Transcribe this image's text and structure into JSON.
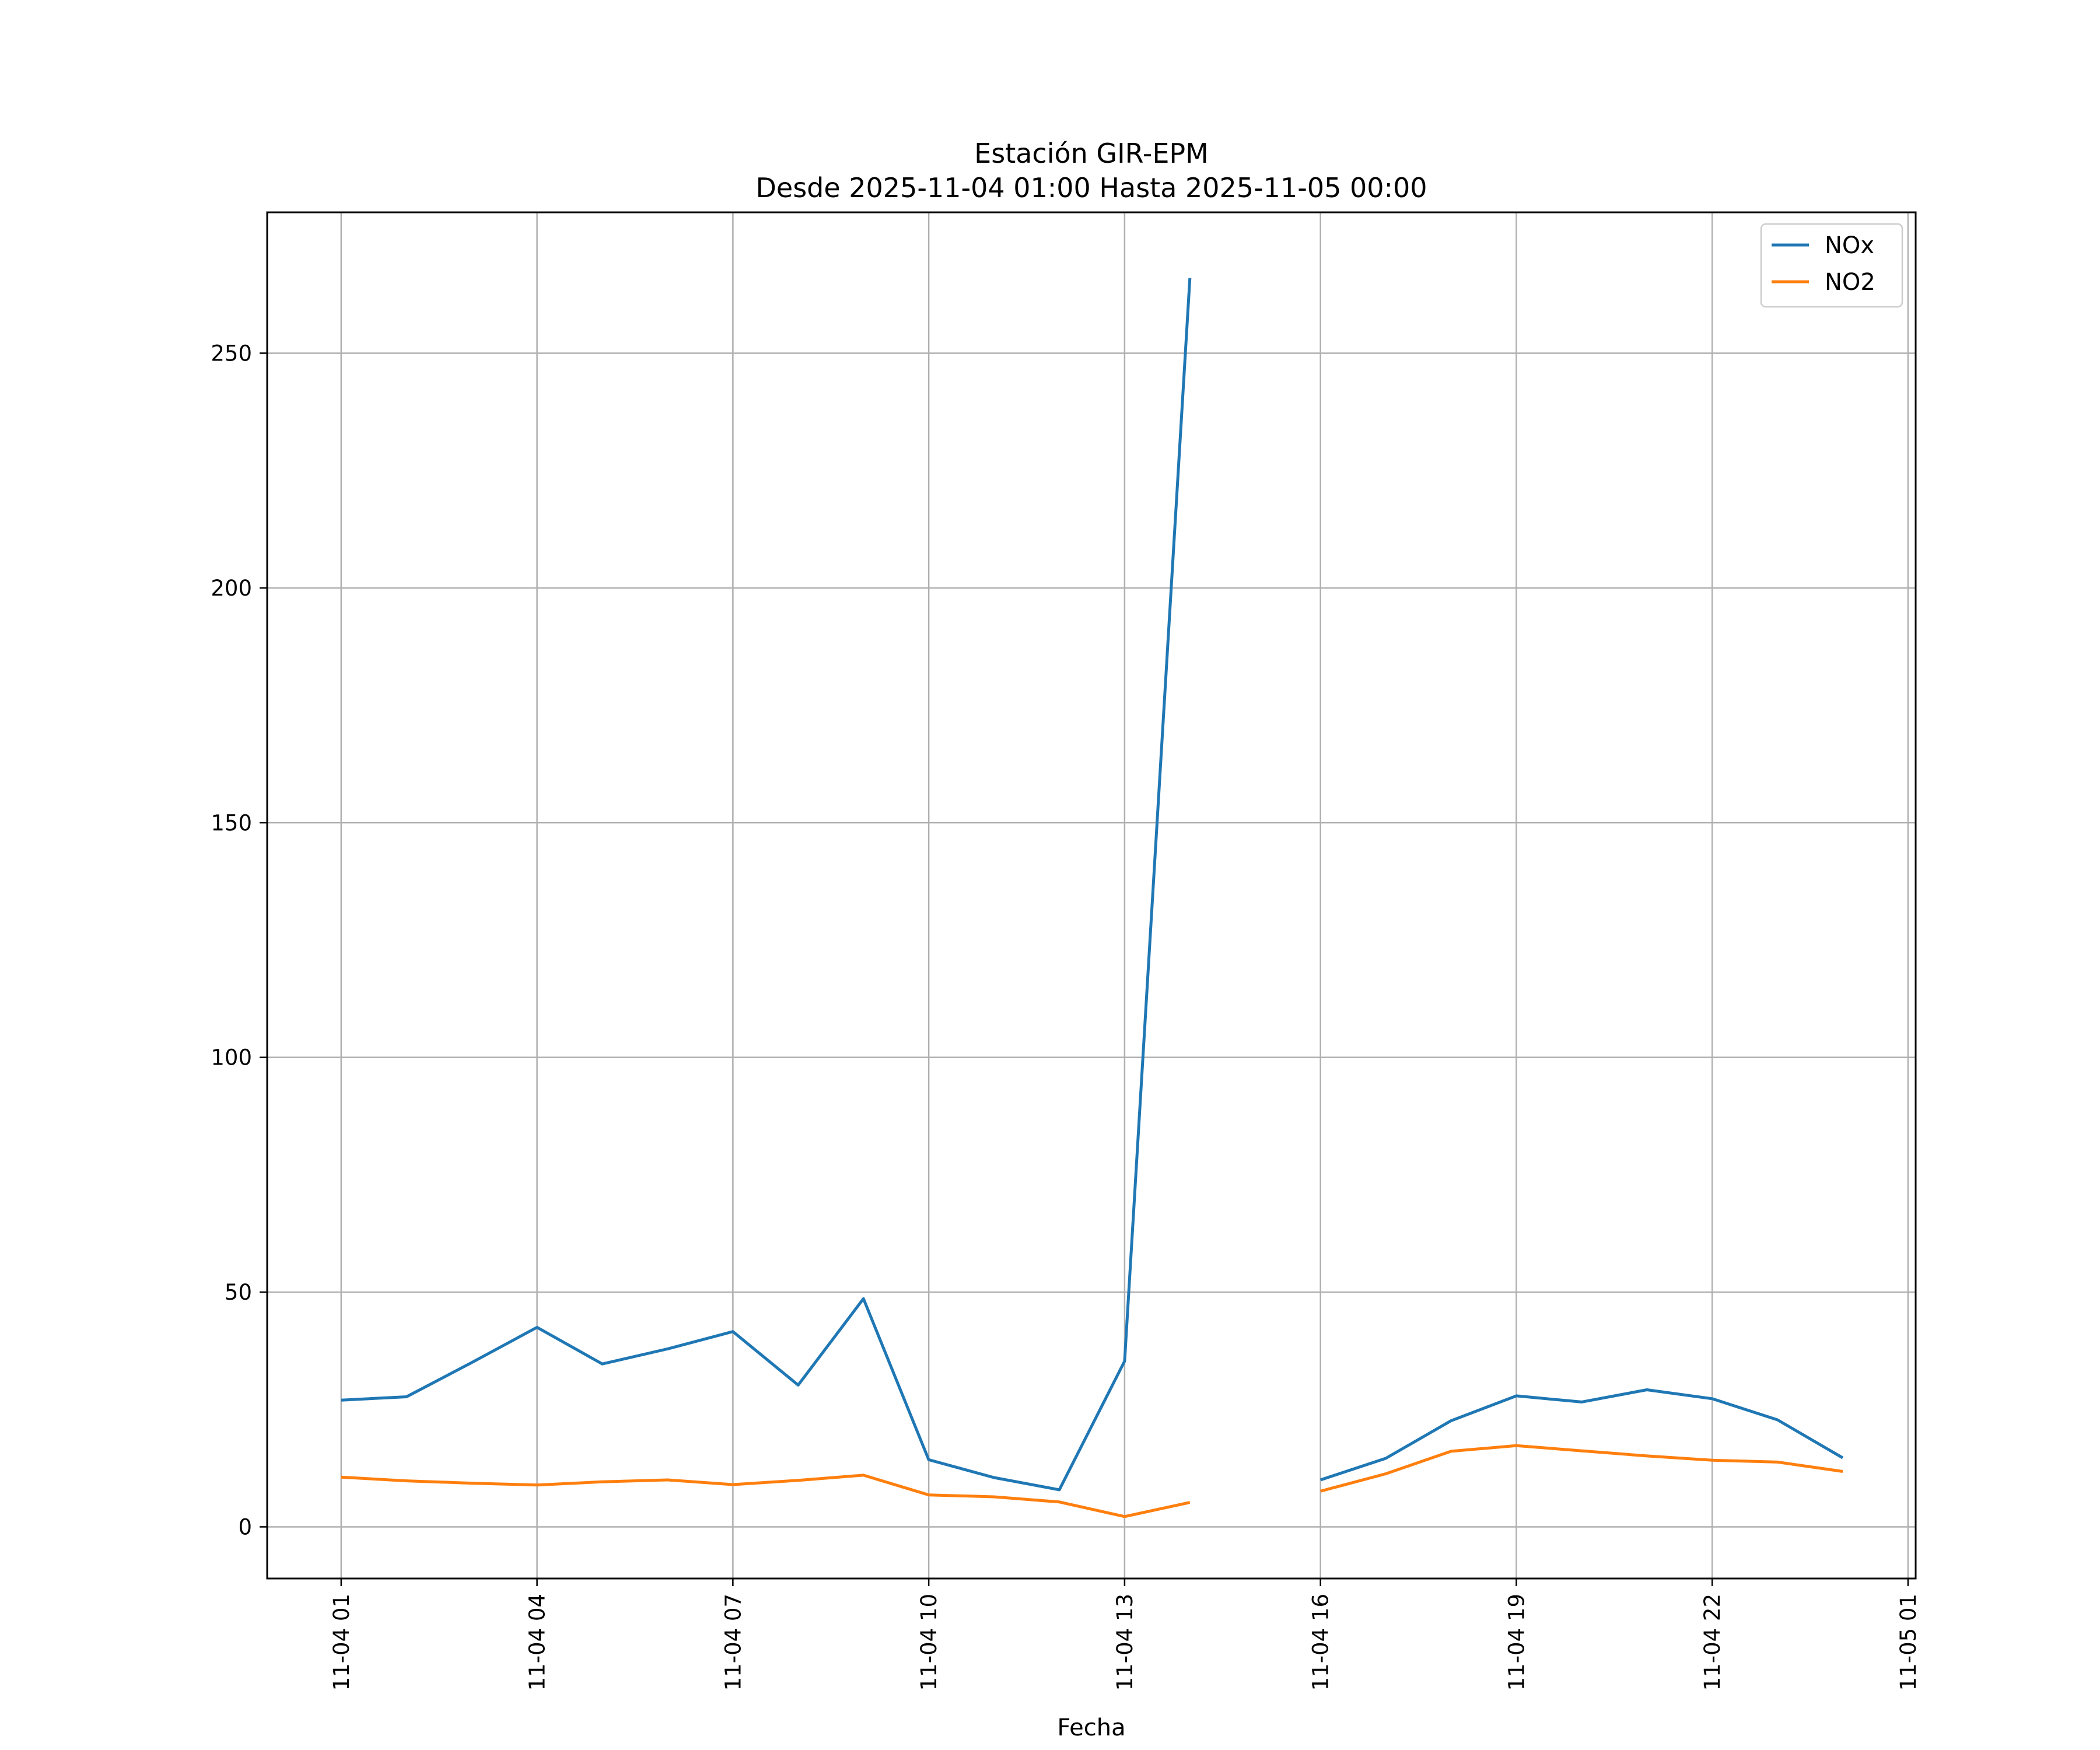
{
  "chart_data": {
    "type": "line",
    "title": "Estación GIR-EPM",
    "subtitle": "Desde 2025-11-04 01:00 Hasta 2025-11-05 00:00",
    "xlabel": "Fecha",
    "ylabel": "",
    "x": [
      "2025-11-04 01:00",
      "2025-11-04 02:00",
      "2025-11-04 03:00",
      "2025-11-04 04:00",
      "2025-11-04 05:00",
      "2025-11-04 06:00",
      "2025-11-04 07:00",
      "2025-11-04 08:00",
      "2025-11-04 09:00",
      "2025-11-04 10:00",
      "2025-11-04 11:00",
      "2025-11-04 12:00",
      "2025-11-04 13:00",
      "2025-11-04 14:00",
      "2025-11-04 15:00",
      "2025-11-04 16:00",
      "2025-11-04 17:00",
      "2025-11-04 18:00",
      "2025-11-04 19:00",
      "2025-11-04 20:00",
      "2025-11-04 21:00",
      "2025-11-04 22:00",
      "2025-11-04 23:00",
      "2025-11-05 00:00"
    ],
    "series": [
      {
        "name": "NOx",
        "color": "#1f77b4",
        "values": [
          27.0,
          27.7,
          35.0,
          42.5,
          34.7,
          37.9,
          41.6,
          30.2,
          48.6,
          14.3,
          10.5,
          7.9,
          35.3,
          266.0,
          null,
          10.0,
          14.6,
          22.6,
          27.9,
          26.6,
          29.2,
          27.3,
          22.8,
          14.7
        ]
      },
      {
        "name": "NO2",
        "color": "#ff7f0e",
        "values": [
          10.6,
          9.8,
          9.3,
          8.9,
          9.6,
          10.0,
          9.0,
          9.9,
          11.0,
          6.8,
          6.4,
          5.3,
          2.2,
          5.2,
          null,
          7.6,
          11.3,
          16.1,
          17.3,
          16.2,
          15.1,
          14.2,
          13.8,
          11.8
        ]
      }
    ],
    "xticks": [
      {
        "x": "2025-11-04 01:00",
        "label": "11-04 01"
      },
      {
        "x": "2025-11-04 04:00",
        "label": "11-04 04"
      },
      {
        "x": "2025-11-04 07:00",
        "label": "11-04 07"
      },
      {
        "x": "2025-11-04 10:00",
        "label": "11-04 10"
      },
      {
        "x": "2025-11-04 13:00",
        "label": "11-04 13"
      },
      {
        "x": "2025-11-04 16:00",
        "label": "11-04 16"
      },
      {
        "x": "2025-11-04 19:00",
        "label": "11-04 19"
      },
      {
        "x": "2025-11-04 22:00",
        "label": "11-04 22"
      },
      {
        "x": "2025-11-05 01:00",
        "label": "11-05 01"
      }
    ],
    "yticks": [
      0,
      50,
      100,
      150,
      200,
      250
    ],
    "xlim": [
      "2025-11-03 23:52",
      "2025-11-05 01:07"
    ],
    "ylim": [
      -11,
      280
    ],
    "grid": true,
    "legend": "top-right"
  }
}
